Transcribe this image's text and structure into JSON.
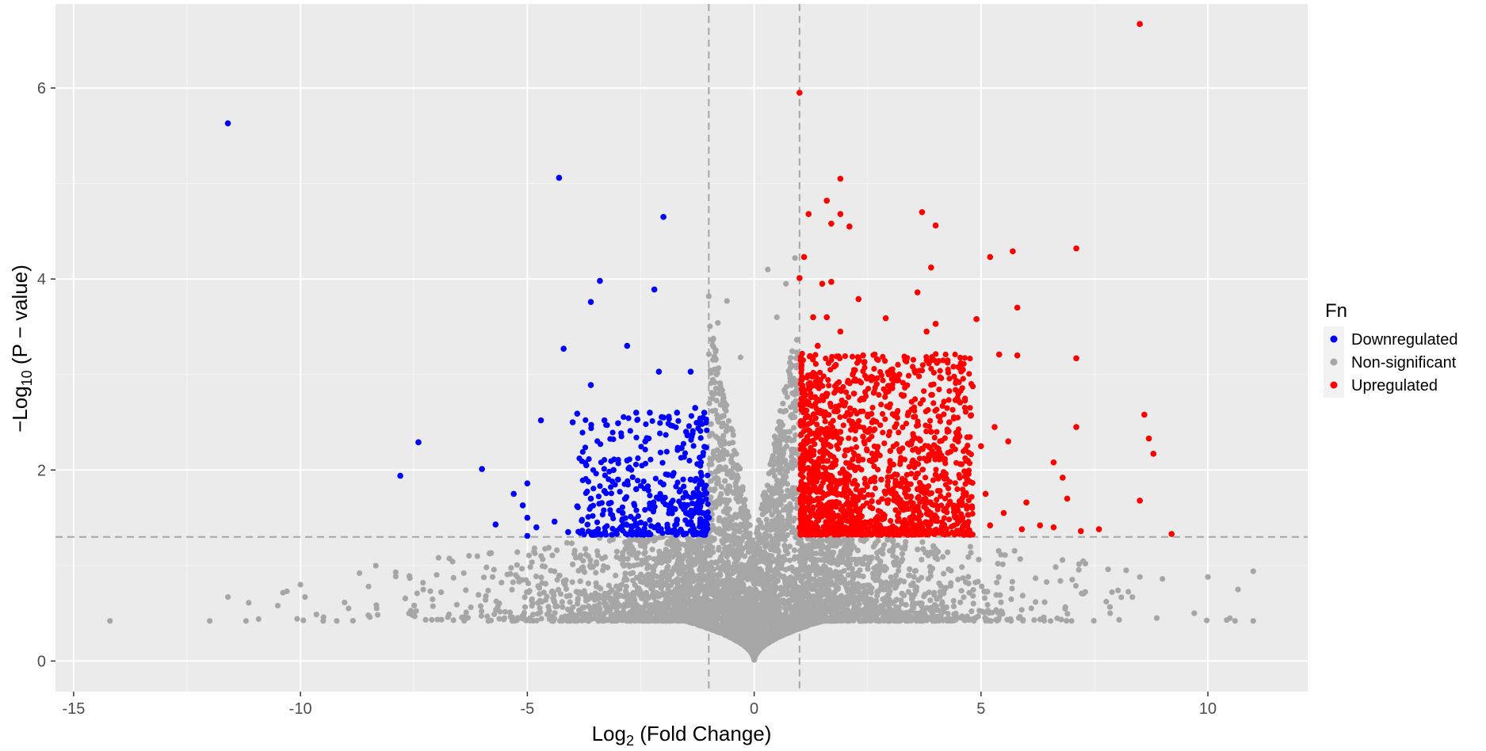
{
  "chart_data": {
    "type": "scatter",
    "title": "",
    "xlabel": {
      "prefix": "Log",
      "sub": "2",
      "suffix": " (Fold Change)"
    },
    "ylabel": {
      "prefix": "−Log",
      "sub": "10",
      "suffix": " (P − value)"
    },
    "xlim": [
      -15.4,
      12.2
    ],
    "ylim": [
      -0.32,
      6.88
    ],
    "xticks": [
      -15,
      -10,
      -5,
      0,
      5,
      10
    ],
    "yticks": [
      0,
      2,
      4,
      6
    ],
    "xtick_labels": [
      "-15",
      "-10",
      "-5",
      "0",
      "5",
      "10"
    ],
    "ytick_labels": [
      "0",
      "2",
      "4",
      "6"
    ],
    "grid": true,
    "thresholds": {
      "fold_change": [
        -1,
        1
      ],
      "neg_log10_p": 1.3
    },
    "legend": {
      "title": "Fn",
      "position": "right",
      "entries": [
        {
          "name": "Downregulated",
          "color": "#0000ff"
        },
        {
          "name": "Non-significant",
          "color": "#a6a6a6"
        },
        {
          "name": "Upregulated",
          "color": "#ff0000"
        }
      ]
    },
    "series": [
      {
        "name": "Downregulated",
        "color": "#0000ff",
        "points": [
          [
            -11.6,
            5.63
          ],
          [
            -4.3,
            5.06
          ],
          [
            -2.0,
            4.65
          ],
          [
            -3.4,
            3.98
          ],
          [
            -2.2,
            3.89
          ],
          [
            -3.6,
            3.76
          ],
          [
            -4.2,
            3.27
          ],
          [
            -2.8,
            3.3
          ],
          [
            -3.6,
            2.89
          ],
          [
            -2.1,
            3.03
          ],
          [
            -1.4,
            3.03
          ],
          [
            -7.4,
            2.29
          ],
          [
            -7.8,
            1.94
          ],
          [
            -6.0,
            2.01
          ],
          [
            -5.3,
            1.75
          ],
          [
            -5.0,
            1.86
          ],
          [
            -4.7,
            2.52
          ],
          [
            -5.1,
            1.63
          ],
          [
            -5.0,
            1.5
          ],
          [
            -5.7,
            1.43
          ],
          [
            -5.0,
            1.31
          ],
          [
            -4.8,
            1.4
          ],
          [
            -4.4,
            1.46
          ],
          [
            -3.9,
            2.59
          ],
          [
            -4.0,
            2.5
          ],
          [
            -3.7,
            2.05
          ],
          [
            -3.3,
            2.52
          ],
          [
            -3.0,
            2.49
          ],
          [
            -2.6,
            2.6
          ],
          [
            -2.3,
            2.6
          ],
          [
            -2.0,
            2.55
          ],
          [
            -1.7,
            2.6
          ],
          [
            -1.3,
            2.65
          ],
          [
            -1.1,
            2.6
          ],
          [
            -1.5,
            2.4
          ],
          [
            -3.6,
            1.7
          ],
          [
            -3.2,
            1.65
          ],
          [
            -2.9,
            1.55
          ],
          [
            -2.5,
            1.45
          ],
          [
            -2.2,
            1.4
          ],
          [
            -1.8,
            1.35
          ],
          [
            -1.3,
            1.33
          ],
          [
            -1.1,
            1.4
          ],
          [
            -4.1,
            1.35
          ],
          [
            -3.9,
            1.62
          ],
          [
            -3.4,
            1.33
          ],
          [
            -1.2,
            2.13
          ],
          [
            -1.6,
            2.23
          ],
          [
            -2.4,
            2.3
          ],
          [
            -2.8,
            2.1
          ],
          [
            -3.1,
            2.0
          ],
          [
            -1.9,
            1.95
          ],
          [
            -1.4,
            1.9
          ],
          [
            -1.1,
            1.8
          ],
          [
            -1.2,
            1.6
          ],
          [
            -1.5,
            1.55
          ],
          [
            -1.8,
            1.6
          ],
          [
            -2.1,
            1.7
          ],
          [
            -2.6,
            1.8
          ],
          [
            -3.0,
            1.9
          ],
          [
            -3.3,
            1.78
          ],
          [
            -2.7,
            1.4
          ],
          [
            -2.3,
            1.65
          ],
          [
            -1.0,
            1.5
          ],
          [
            -1.7,
            1.48
          ],
          [
            -2.0,
            1.85
          ],
          [
            -3.8,
            1.47
          ]
        ]
      },
      {
        "name": "Upregulated",
        "color": "#ff0000",
        "points": [
          [
            8.5,
            6.67
          ],
          [
            1.0,
            5.95
          ],
          [
            1.9,
            5.05
          ],
          [
            1.6,
            4.82
          ],
          [
            3.7,
            4.7
          ],
          [
            1.9,
            4.68
          ],
          [
            1.2,
            4.68
          ],
          [
            1.7,
            4.58
          ],
          [
            2.1,
            4.55
          ],
          [
            4.0,
            4.56
          ],
          [
            7.1,
            4.32
          ],
          [
            5.7,
            4.29
          ],
          [
            5.2,
            4.23
          ],
          [
            1.1,
            4.23
          ],
          [
            3.9,
            4.12
          ],
          [
            1.0,
            4.01
          ],
          [
            1.7,
            3.97
          ],
          [
            1.5,
            3.95
          ],
          [
            3.6,
            3.86
          ],
          [
            2.3,
            3.79
          ],
          [
            5.8,
            3.7
          ],
          [
            1.3,
            3.6
          ],
          [
            1.6,
            3.6
          ],
          [
            2.9,
            3.59
          ],
          [
            4.9,
            3.58
          ],
          [
            4.0,
            3.53
          ],
          [
            3.8,
            3.45
          ],
          [
            5.4,
            3.21
          ],
          [
            5.8,
            3.2
          ],
          [
            7.1,
            3.17
          ],
          [
            8.6,
            2.58
          ],
          [
            7.1,
            2.45
          ],
          [
            8.7,
            2.33
          ],
          [
            8.8,
            2.17
          ],
          [
            6.6,
            2.08
          ],
          [
            6.8,
            1.92
          ],
          [
            6.9,
            1.7
          ],
          [
            8.5,
            1.68
          ],
          [
            6.0,
            1.66
          ],
          [
            6.3,
            1.42
          ],
          [
            6.6,
            1.4
          ],
          [
            7.2,
            1.36
          ],
          [
            7.6,
            1.38
          ],
          [
            9.2,
            1.33
          ],
          [
            5.0,
            2.25
          ],
          [
            5.3,
            2.45
          ],
          [
            5.6,
            2.3
          ],
          [
            4.5,
            2.8
          ],
          [
            4.6,
            3.05
          ],
          [
            4.3,
            2.5
          ],
          [
            3.2,
            3.0
          ],
          [
            2.7,
            2.9
          ],
          [
            2.4,
            3.2
          ],
          [
            1.9,
            3.45
          ],
          [
            3.4,
            2.6
          ],
          [
            3.9,
            2.4
          ],
          [
            4.2,
            2.1
          ],
          [
            4.7,
            1.9
          ],
          [
            5.1,
            1.75
          ],
          [
            5.5,
            1.55
          ],
          [
            5.9,
            1.38
          ],
          [
            4.4,
            1.6
          ],
          [
            3.6,
            1.8
          ],
          [
            3.0,
            2.2
          ],
          [
            2.6,
            2.5
          ],
          [
            2.2,
            2.8
          ],
          [
            1.8,
            3.1
          ],
          [
            1.4,
            3.3
          ],
          [
            1.2,
            2.9
          ],
          [
            1.5,
            2.6
          ],
          [
            1.9,
            2.4
          ],
          [
            2.3,
            2.1
          ],
          [
            2.8,
            1.9
          ],
          [
            3.3,
            1.6
          ],
          [
            3.8,
            1.45
          ],
          [
            4.1,
            1.35
          ],
          [
            1.1,
            2.3
          ],
          [
            1.3,
            2.0
          ],
          [
            1.7,
            1.8
          ],
          [
            2.1,
            1.6
          ],
          [
            2.5,
            1.45
          ],
          [
            2.9,
            1.38
          ],
          [
            1.2,
            1.5
          ],
          [
            1.6,
            1.4
          ],
          [
            2.0,
            1.35
          ],
          [
            1.0,
            1.8
          ],
          [
            1.0,
            1.4
          ],
          [
            1.4,
            1.7
          ],
          [
            1.8,
            2.1
          ],
          [
            2.4,
            2.35
          ],
          [
            3.1,
            2.45
          ],
          [
            3.5,
            2.1
          ],
          [
            4.0,
            1.95
          ],
          [
            4.8,
            1.62
          ],
          [
            5.2,
            1.42
          ],
          [
            1.1,
            1.34
          ]
        ]
      }
    ],
    "nonsignificant_outliers": [
      [
        -14.2,
        0.42
      ],
      [
        -12.0,
        0.42
      ],
      [
        -11.6,
        0.67
      ],
      [
        -11.2,
        0.42
      ],
      [
        -10.5,
        0.58
      ],
      [
        -10.3,
        0.73
      ],
      [
        -10.0,
        0.8
      ],
      [
        -9.9,
        0.67
      ],
      [
        -9.5,
        0.42
      ],
      [
        -9.2,
        0.42
      ],
      [
        -8.7,
        0.92
      ],
      [
        -8.5,
        0.78
      ],
      [
        -7.9,
        0.93
      ],
      [
        -7.6,
        0.89
      ],
      [
        -7.3,
        0.82
      ],
      [
        -6.9,
        0.72
      ],
      [
        -6.4,
        0.92
      ],
      [
        -5.9,
        0.98
      ],
      [
        -1.0,
        3.82
      ],
      [
        -0.6,
        3.77
      ],
      [
        -0.8,
        3.54
      ],
      [
        0.3,
        4.1
      ],
      [
        -0.3,
        3.18
      ],
      [
        0.7,
        3.95
      ],
      [
        0.9,
        4.22
      ],
      [
        0.5,
        3.6
      ],
      [
        8.2,
        0.95
      ],
      [
        8.5,
        0.88
      ],
      [
        9.0,
        0.86
      ],
      [
        10.0,
        0.88
      ],
      [
        11.0,
        0.94
      ],
      [
        9.7,
        0.5
      ],
      [
        10.6,
        0.42
      ],
      [
        11.0,
        0.42
      ],
      [
        7.3,
        1.02
      ],
      [
        7.8,
        0.96
      ]
    ]
  }
}
